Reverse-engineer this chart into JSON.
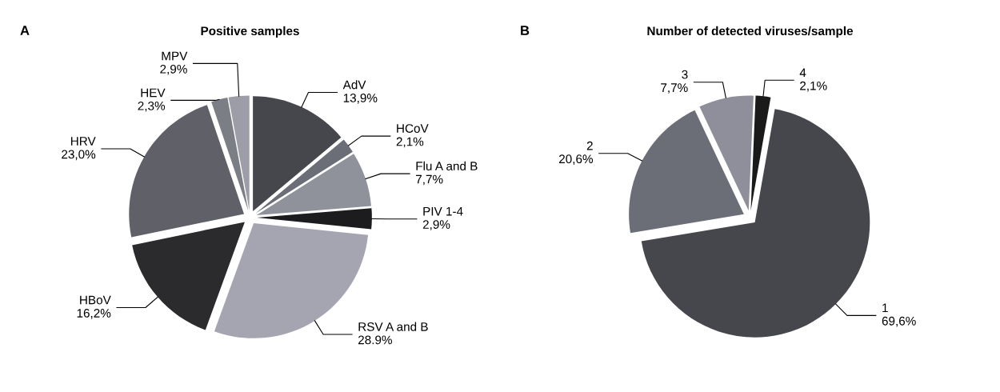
{
  "chart_data": [
    {
      "type": "pie",
      "title": "Positive samples",
      "annotations": [
        "A"
      ],
      "categories": [
        "AdV",
        "HCoV",
        "Flu A and B",
        "PIV 1-4",
        "RSV A and B",
        "HBoV",
        "HRV",
        "HEV",
        "MPV"
      ],
      "values": [
        13.9,
        2.1,
        7.7,
        2.9,
        28.9,
        16.2,
        23.0,
        2.3,
        2.9
      ],
      "value_labels": [
        "13,9%",
        "2,1%",
        "7,7%",
        "2,9%",
        "28.9%",
        "16,2%",
        "23,0%",
        "2,3%",
        "2,9%"
      ],
      "colors": [
        "#45474d",
        "#6b6e76",
        "#8f919b",
        "#1c1c1e",
        "#a4a5b1",
        "#2b2b2d",
        "#5f6068",
        "#7c7e86",
        "#9c9da6"
      ]
    },
    {
      "type": "pie",
      "title": "Number of detected viruses/sample",
      "annotations": [
        "B"
      ],
      "categories": [
        "1",
        "2",
        "3",
        "4"
      ],
      "values": [
        69.6,
        20.6,
        7.7,
        2.1
      ],
      "value_labels": [
        "69,6%",
        "20,6%",
        "7,7%",
        "2,1%"
      ],
      "colors": [
        "#45474d",
        "#6b6d77",
        "#8e8f9a",
        "#1a1a1a"
      ]
    }
  ]
}
